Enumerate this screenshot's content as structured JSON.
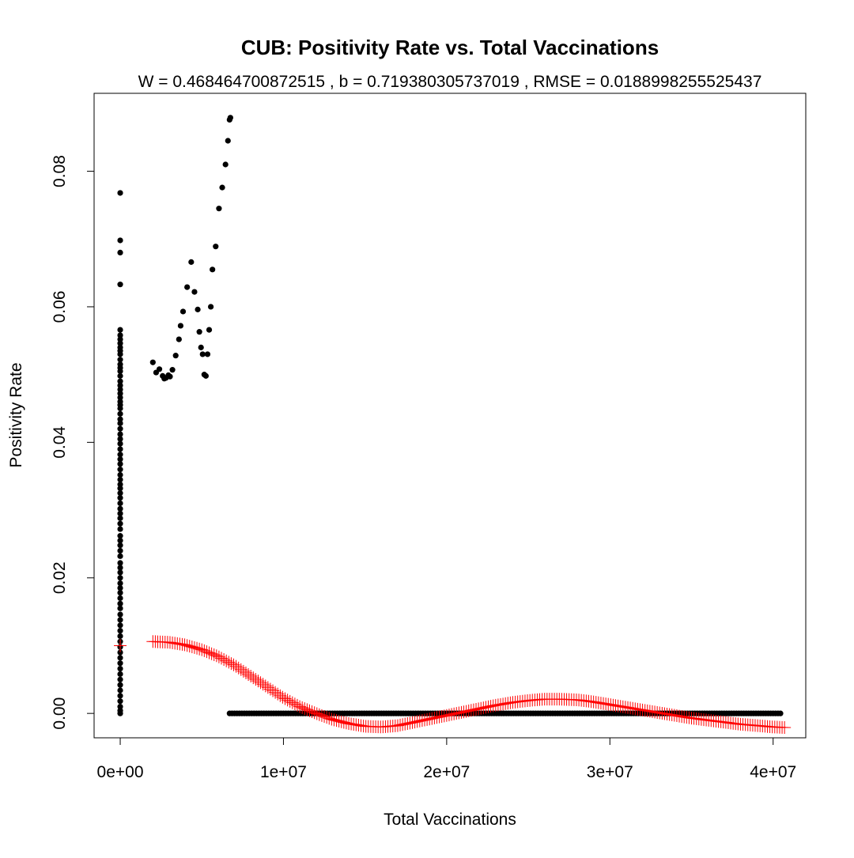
{
  "chart_data": {
    "type": "scatter",
    "title": "CUB: Positivity Rate vs. Total Vaccinations",
    "subtitle": "W = 0.468464700872515 , b = 0.719380305737019 , RMSE = 0.0188998255525437",
    "xlabel": "Total Vaccinations",
    "ylabel": "Positivity Rate",
    "xlim": [
      -1600000,
      42000000
    ],
    "ylim": [
      -0.0036,
      0.0915
    ],
    "x_ticks": [
      0,
      10000000,
      20000000,
      30000000,
      40000000
    ],
    "x_tick_labels": [
      "0e+00",
      "1e+07",
      "2e+07",
      "3e+07",
      "4e+07"
    ],
    "y_ticks": [
      0,
      0.02,
      0.04,
      0.06,
      0.08
    ],
    "y_tick_labels": [
      "0.00",
      "0.02",
      "0.04",
      "0.06",
      "0.08"
    ],
    "grid": false,
    "colors": {
      "observed": "#000000",
      "fitted": "#ff0000"
    },
    "observed_cluster_x0": {
      "x": 0,
      "y": [
        0.0768,
        0.0698,
        0.068,
        0.0633,
        0.0566,
        0.0558,
        0.0552,
        0.0546,
        0.054,
        0.0535,
        0.053,
        0.0522,
        0.0515,
        0.051,
        0.0505,
        0.0498,
        0.049,
        0.0484,
        0.0478,
        0.0472,
        0.0466,
        0.046,
        0.0455,
        0.045,
        0.0442,
        0.0434,
        0.0428,
        0.042,
        0.0412,
        0.0405,
        0.0398,
        0.039,
        0.0382,
        0.0375,
        0.0368,
        0.036,
        0.0352,
        0.0345,
        0.0338,
        0.0332,
        0.0325,
        0.0318,
        0.031,
        0.0302,
        0.0295,
        0.0288,
        0.028,
        0.0272,
        0.0262,
        0.0255,
        0.0248,
        0.024,
        0.0232,
        0.0222,
        0.0215,
        0.0208,
        0.02,
        0.0192,
        0.0185,
        0.0178,
        0.017,
        0.0162,
        0.0155,
        0.0146,
        0.0138,
        0.013,
        0.0122,
        0.0114,
        0.0106,
        0.0098,
        0.009,
        0.0082,
        0.0074,
        0.0066,
        0.0058,
        0.005,
        0.0042,
        0.0034,
        0.0026,
        0.0018,
        0.001,
        0.0004,
        0.0
      ]
    },
    "observed_early": {
      "x": [
        2000000,
        2200000,
        2400000,
        2600000,
        2700000,
        2800000,
        2950000,
        3050000,
        3200000,
        3400000,
        3600000,
        3700000,
        3850000,
        4100000,
        4350000,
        4550000,
        4750000,
        4850000,
        4950000,
        5050000,
        5150000,
        5250000,
        5350000,
        5450000,
        5550000,
        5650000,
        5850000,
        6050000,
        6250000,
        6450000,
        6600000,
        6700000,
        6750000
      ],
      "y": [
        0.0518,
        0.0503,
        0.0508,
        0.0498,
        0.0494,
        0.0495,
        0.0499,
        0.0497,
        0.0507,
        0.0528,
        0.0552,
        0.0572,
        0.0593,
        0.0629,
        0.0666,
        0.0622,
        0.0596,
        0.0563,
        0.054,
        0.053,
        0.05,
        0.0498,
        0.053,
        0.0566,
        0.06,
        0.0655,
        0.0689,
        0.0745,
        0.0776,
        0.081,
        0.0845,
        0.0876,
        0.0879
      ]
    },
    "observed_zero_segment": {
      "y": 0,
      "x_start": 6700000,
      "x_end": 40500000,
      "x_step": 150000
    },
    "fitted": {
      "marker": "+",
      "start_point": {
        "x": 0,
        "y": 0.01
      },
      "x_start": 2000000,
      "x_end": 40800000,
      "x_step": 150000,
      "curve_knots": {
        "x": [
          2000000,
          3000000,
          4000000,
          5000000,
          6000000,
          7000000,
          8000000,
          9000000,
          10000000,
          11000000,
          12000000,
          13000000,
          14000000,
          15000000,
          16000000,
          17000000,
          18000000,
          19000000,
          20000000,
          21000000,
          22000000,
          23000000,
          24000000,
          25000000,
          26000000,
          27000000,
          28000000,
          29000000,
          30000000,
          31000000,
          32000000,
          33000000,
          34000000,
          35000000,
          36000000,
          37000000,
          38000000,
          39000000,
          40000000,
          40800000
        ],
        "y": [
          0.0106,
          0.0105,
          0.0101,
          0.0094,
          0.0084,
          0.0071,
          0.0055,
          0.0039,
          0.0023,
          0.001,
          0.0,
          -0.0009,
          -0.0015,
          -0.0019,
          -0.002,
          -0.0018,
          -0.0013,
          -0.0008,
          -0.0003,
          0.0002,
          0.0007,
          0.0012,
          0.0016,
          0.0019,
          0.0021,
          0.0021,
          0.002,
          0.0017,
          0.0013,
          0.0009,
          0.0005,
          0.0001,
          -0.0003,
          -0.0007,
          -0.001,
          -0.0013,
          -0.0016,
          -0.0018,
          -0.002,
          -0.0021
        ]
      }
    }
  }
}
